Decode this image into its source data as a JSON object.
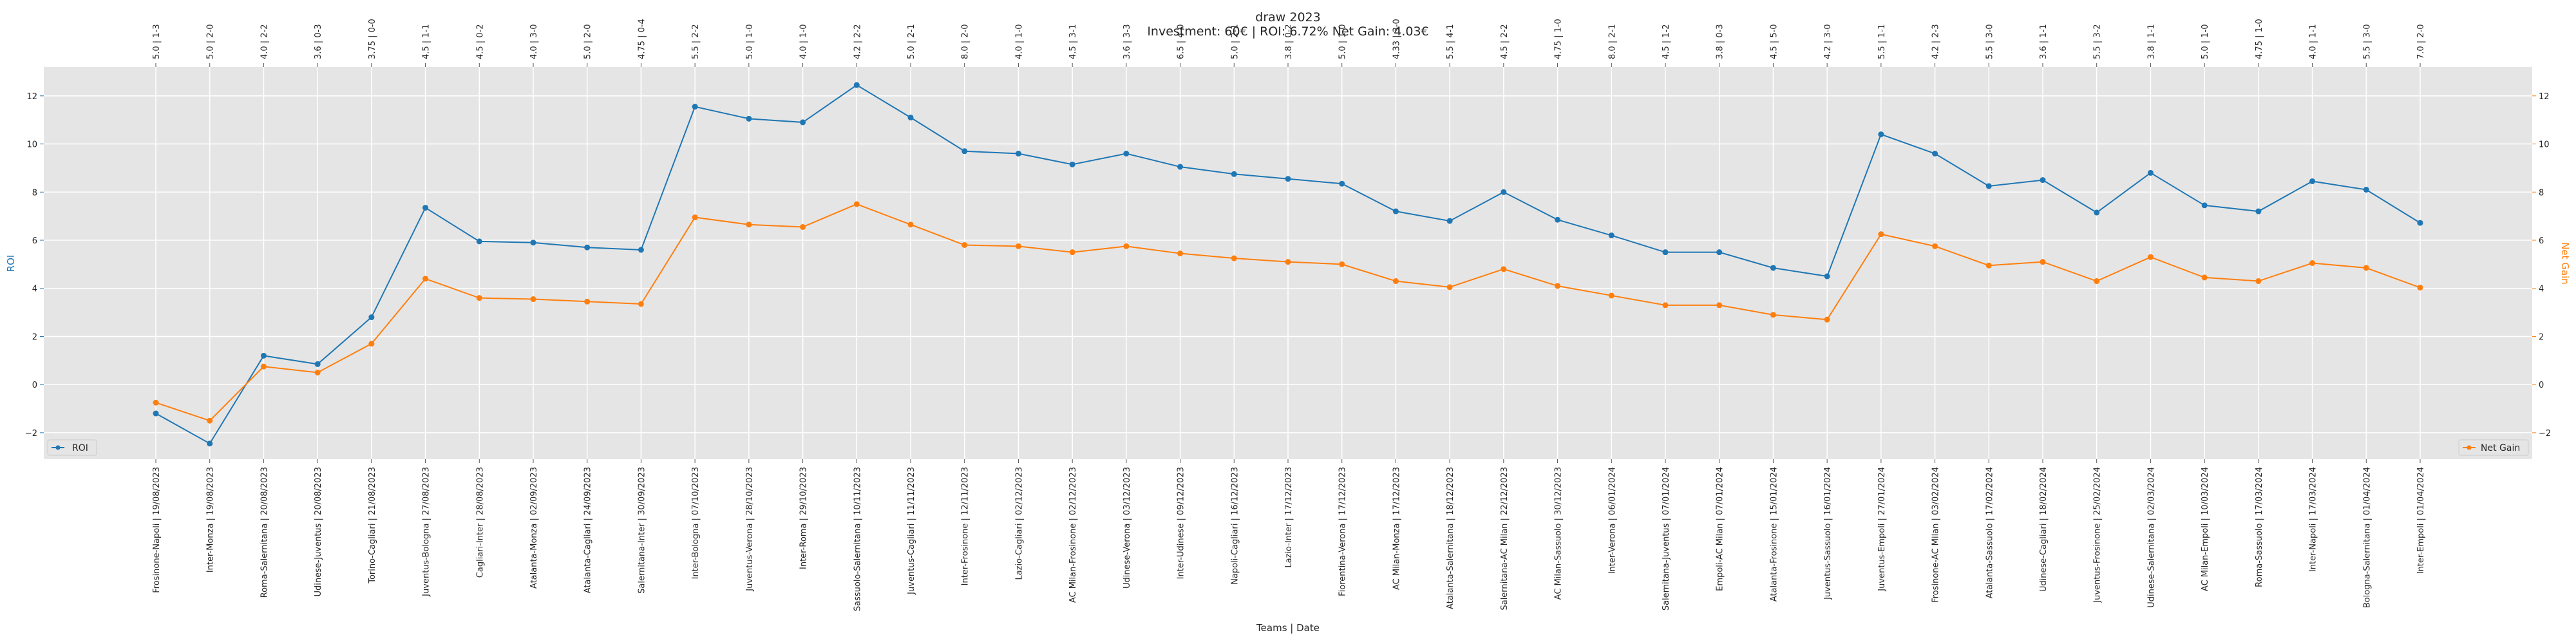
{
  "chart_data": {
    "type": "line",
    "title": "draw 2023",
    "subtitle": "Investment: 60€ | ROI: 6.72% Net Gain: 4.03€",
    "xlabel": "Teams | Date",
    "ylabel_left": "ROI",
    "ylabel_right": "Net Gain",
    "ylim_left": [
      -3.1,
      13.2
    ],
    "ylim_right": [
      -3.1,
      13.2
    ],
    "yticks": [
      -2,
      0,
      2,
      4,
      6,
      8,
      10,
      12
    ],
    "ytick_labels": [
      "−2",
      "0",
      "2",
      "4",
      "6",
      "8",
      "10",
      "12"
    ],
    "grid": true,
    "categories": [
      "Frosinone-Napoli | 19/08/2023",
      "Inter-Monza | 19/08/2023",
      "Roma-Salernitana | 20/08/2023",
      "Udinese-Juventus | 20/08/2023",
      "Torino-Cagliari | 21/08/2023",
      "Juventus-Bologna | 27/08/2023",
      "Cagliari-Inter | 28/08/2023",
      "Atalanta-Monza | 02/09/2023",
      "Atalanta-Cagliari | 24/09/2023",
      "Salernitana-Inter | 30/09/2023",
      "Inter-Bologna | 07/10/2023",
      "Juventus-Verona | 28/10/2023",
      "Inter-Roma | 29/10/2023",
      "Sassuolo-Salernitana | 10/11/2023",
      "Juventus-Cagliari | 11/11/2023",
      "Inter-Frosinone | 12/11/2023",
      "Lazio-Cagliari | 02/12/2023",
      "AC Milan-Frosinone | 02/12/2023",
      "Udinese-Verona | 03/12/2023",
      "Inter-Udinese | 09/12/2023",
      "Napoli-Cagliari | 16/12/2023",
      "Lazio-Inter | 17/12/2023",
      "Fiorentina-Verona | 17/12/2023",
      "AC Milan-Monza | 17/12/2023",
      "Atalanta-Salernitana | 18/12/2023",
      "Salernitana-AC Milan | 22/12/2023",
      "AC Milan-Sassuolo | 30/12/2023",
      "Inter-Verona | 06/01/2024",
      "Salernitana-Juventus | 07/01/2024",
      "Empoli-AC Milan | 07/01/2024",
      "Atalanta-Frosinone | 15/01/2024",
      "Juventus-Sassuolo | 16/01/2024",
      "Juventus-Empoli | 27/01/2024",
      "Frosinone-AC Milan | 03/02/2024",
      "Atalanta-Sassuolo | 17/02/2024",
      "Udinese-Cagliari | 18/02/2024",
      "Juventus-Frosinone | 25/02/2024",
      "Udinese-Salernitana | 02/03/2024",
      "AC Milan-Empoli | 10/03/2024",
      "Roma-Sassuolo | 17/03/2024",
      "Inter-Napoli | 17/03/2024",
      "Bologna-Salernitana | 01/04/2024",
      "Inter-Empoli | 01/04/2024"
    ],
    "top_labels": [
      "5.0 | 1-3",
      "5.0 | 2-0",
      "4.0 | 2-2",
      "3.6 | 0-3",
      "3.75 | 0-0",
      "4.5 | 1-1",
      "4.5 | 0-2",
      "4.0 | 3-0",
      "5.0 | 2-0",
      "4.75 | 0-4",
      "5.5 | 2-2",
      "5.0 | 1-0",
      "4.0 | 1-0",
      "4.2 | 2-2",
      "5.0 | 2-1",
      "8.0 | 2-0",
      "4.0 | 1-0",
      "4.5 | 3-1",
      "3.6 | 3-3",
      "6.5 | 4-0",
      "5.0 | 2-1",
      "3.8 | 0-2",
      "5.0 | 1-0",
      "4.33 | 3-0",
      "5.5 | 4-1",
      "4.5 | 2-2",
      "4.75 | 1-0",
      "8.0 | 2-1",
      "4.5 | 1-2",
      "3.8 | 0-3",
      "4.5 | 5-0",
      "4.2 | 3-0",
      "5.5 | 1-1",
      "4.2 | 2-3",
      "5.5 | 3-0",
      "3.6 | 1-1",
      "5.5 | 3-2",
      "3.8 | 1-1",
      "5.0 | 1-0",
      "4.75 | 1-0",
      "4.0 | 1-1",
      "5.5 | 3-0",
      "7.0 | 2-0"
    ],
    "series": [
      {
        "name": "ROI",
        "axis": "left",
        "color": "#1f77b4",
        "values": [
          -1.2,
          -2.45,
          1.2,
          0.85,
          2.8,
          7.35,
          5.95,
          5.9,
          5.7,
          5.6,
          11.55,
          11.05,
          10.9,
          12.45,
          11.1,
          9.7,
          9.6,
          9.15,
          9.6,
          9.05,
          8.75,
          8.55,
          8.35,
          7.2,
          6.8,
          8.0,
          6.85,
          6.2,
          5.5,
          5.5,
          4.85,
          4.5,
          10.4,
          9.6,
          8.25,
          8.5,
          7.15,
          8.8,
          7.45,
          7.2,
          8.45,
          8.1,
          6.72
        ]
      },
      {
        "name": "Net Gain",
        "axis": "right",
        "color": "#ff7f0e",
        "values": [
          -0.75,
          -1.5,
          0.75,
          0.5,
          1.7,
          4.4,
          3.6,
          3.55,
          3.45,
          3.35,
          6.95,
          6.65,
          6.55,
          7.5,
          6.65,
          5.8,
          5.75,
          5.5,
          5.75,
          5.45,
          5.25,
          5.1,
          5.0,
          4.3,
          4.05,
          4.8,
          4.1,
          3.7,
          3.3,
          3.3,
          2.9,
          2.7,
          6.25,
          5.75,
          4.95,
          5.1,
          4.3,
          5.3,
          4.45,
          4.3,
          5.05,
          4.85,
          4.03
        ]
      }
    ],
    "legend": [
      {
        "name": "ROI",
        "placement": "lower-left"
      },
      {
        "name": "Net Gain",
        "placement": "lower-right"
      }
    ],
    "colors": {
      "plot_background": "#e5e5e5",
      "grid": "#ffffff",
      "roi": "#1f77b4",
      "net_gain": "#ff7f0e"
    }
  }
}
